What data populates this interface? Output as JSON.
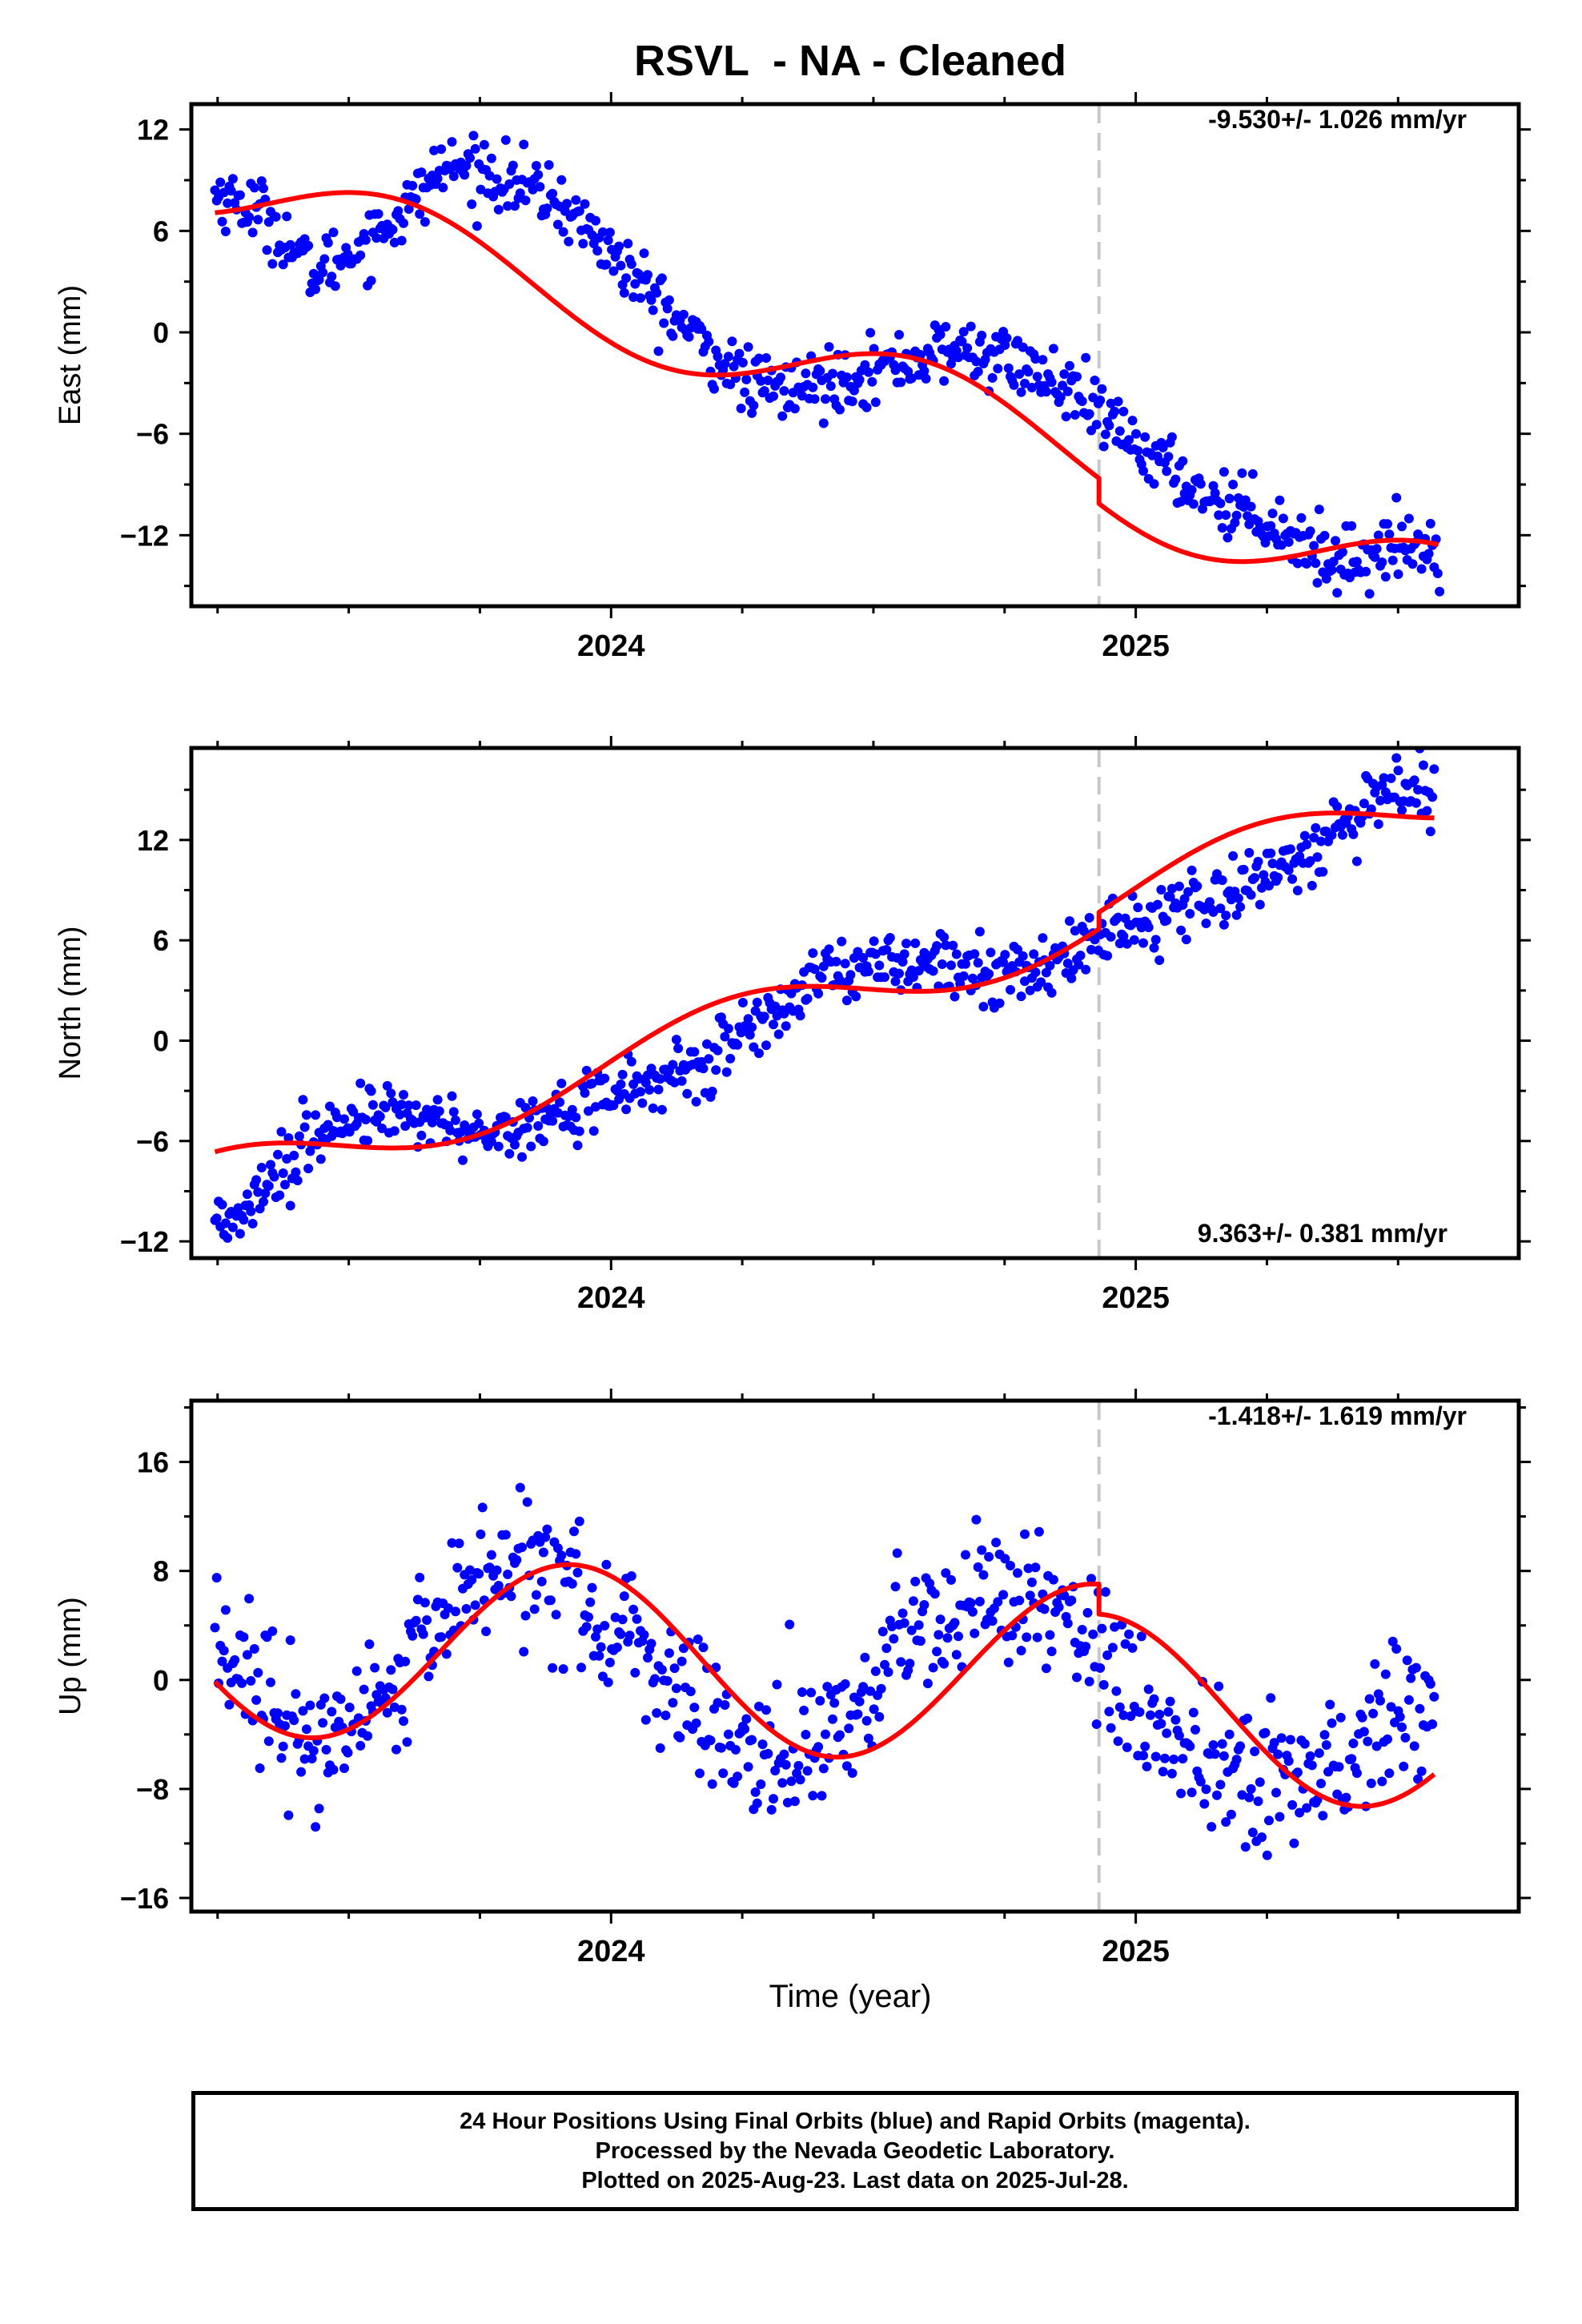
{
  "title": "RSVL  - NA - Cleaned",
  "x_axis_label": "Time (year)",
  "colors": {
    "points": "#0000ff",
    "model": "#ff0000",
    "break_line": "#c8c8c8",
    "frame": "#000000"
  },
  "footer": {
    "line1": "24 Hour Positions Using Final Orbits (blue) and Rapid Orbits (magenta).",
    "line2": "Processed by the Nevada Geodetic Laboratory.",
    "line3": "Plotted on 2025-Aug-23. Last data on 2025-Jul-28."
  },
  "chart_data": [
    {
      "type": "scatter",
      "ylabel": "East (mm)",
      "rate_label": "-9.530+/- 1.026 mm/yr",
      "rate_position": "top-right",
      "xlim": [
        2023.2,
        2025.73
      ],
      "ylim": [
        -16.2,
        13.5
      ],
      "x_ticks": [
        2024,
        2025
      ],
      "x_tick_labels": [
        "2024",
        "2025"
      ],
      "y_ticks": [
        -12,
        -6,
        0,
        6,
        12
      ],
      "y_tick_labels": [
        "−12",
        "−6",
        "0",
        "6",
        "12"
      ],
      "equipment_change_x": 2024.93,
      "model": {
        "slope_mm_per_yr": -9.53,
        "ref_epoch": 2024.45,
        "offset_at_ref": -2.84,
        "annual_sin": 2.07,
        "annual_cos": 1.49,
        "semiannual_sin": 0.0,
        "semiannual_cos": 0.0,
        "step_at_break": -1.5
      },
      "series": [
        {
          "kind": "daily_positions",
          "x": [
            2023.25,
            2023.34,
            2023.43,
            2023.49,
            2023.56,
            2023.62,
            2023.68,
            2023.75,
            2023.83,
            2023.9,
            2023.98,
            2024.05,
            2024.12,
            2024.2,
            2024.27,
            2024.34,
            2024.4,
            2024.46,
            2024.52,
            2024.58,
            2024.65,
            2024.72,
            2024.79,
            2024.87,
            2024.93,
            2025.0,
            2025.08,
            2025.15,
            2025.22,
            2025.3,
            2025.37,
            2025.44,
            2025.51,
            2025.57
          ],
          "y": [
            8.2,
            7.0,
            3.5,
            4.5,
            6.0,
            7.6,
            9.8,
            9.6,
            8.7,
            7.7,
            5.4,
            3.0,
            0.9,
            -1.5,
            -3.2,
            -3.4,
            -3.0,
            -2.4,
            -2.1,
            -1.6,
            -1.0,
            -1.3,
            -2.1,
            -3.4,
            -5.0,
            -6.6,
            -8.5,
            -9.9,
            -10.5,
            -12.0,
            -13.5,
            -13.2,
            -12.5,
            -12.6
          ]
        }
      ]
    },
    {
      "type": "scatter",
      "ylabel": "North (mm)",
      "rate_label": "9.363+/- 0.381 mm/yr",
      "rate_position": "bottom-right",
      "xlim": [
        2023.2,
        2025.73
      ],
      "ylim": [
        -13.0,
        17.5
      ],
      "x_ticks": [
        2024,
        2025
      ],
      "x_tick_labels": [
        "2024",
        "2025"
      ],
      "y_ticks": [
        -12,
        -6,
        0,
        6,
        12
      ],
      "y_tick_labels": [
        "−12",
        "−6",
        "0",
        "6",
        "12"
      ],
      "equipment_change_x": 2024.93,
      "model": {
        "slope_mm_per_yr": 9.363,
        "ref_epoch": 2024.45,
        "offset_at_ref": 2.79,
        "annual_sin": -1.81,
        "annual_cos": 0.38,
        "semiannual_sin": 0.0,
        "semiannual_cos": 0.0,
        "step_at_break": 1.0
      },
      "series": [
        {
          "kind": "daily_positions",
          "x": [
            2023.25,
            2023.31,
            2023.37,
            2023.43,
            2023.5,
            2023.56,
            2023.62,
            2023.68,
            2023.75,
            2023.81,
            2023.87,
            2023.93,
            2024.0,
            2024.06,
            2024.12,
            2024.19,
            2024.25,
            2024.31,
            2024.37,
            2024.44,
            2024.5,
            2024.56,
            2024.62,
            2024.68,
            2024.75,
            2024.81,
            2024.87,
            2024.94,
            2025.0,
            2025.06,
            2025.12,
            2025.19,
            2025.25,
            2025.31,
            2025.37,
            2025.44,
            2025.5,
            2025.56
          ],
          "y": [
            -11.0,
            -9.5,
            -7.6,
            -6.0,
            -4.9,
            -4.3,
            -4.4,
            -4.8,
            -5.2,
            -5.3,
            -4.8,
            -4.0,
            -3.2,
            -2.7,
            -2.1,
            -1.4,
            0.3,
            1.8,
            3.4,
            4.4,
            5.0,
            4.8,
            4.6,
            4.1,
            3.9,
            4.4,
            5.0,
            6.4,
            7.1,
            7.9,
            8.6,
            9.1,
            10.1,
            11.0,
            12.3,
            13.4,
            14.8,
            15.2
          ]
        }
      ]
    },
    {
      "type": "scatter",
      "ylabel": "Up (mm)",
      "rate_label": "-1.418+/- 1.619 mm/yr",
      "rate_position": "top-right",
      "xlim": [
        2023.2,
        2025.73
      ],
      "ylim": [
        -17.0,
        20.5
      ],
      "x_ticks": [
        2024,
        2025
      ],
      "x_tick_labels": [
        "2024",
        "2025"
      ],
      "y_ticks": [
        -16,
        -8,
        0,
        8,
        16
      ],
      "y_tick_labels": [
        "−16",
        "−8",
        "0",
        "8",
        "16"
      ],
      "equipment_change_x": 2024.93,
      "model": {
        "slope_mm_per_yr": -1.418,
        "ref_epoch": 2024.45,
        "offset_at_ref": 1.01,
        "annual_sin": 1.05,
        "annual_cos": -6.62,
        "semiannual_sin": 0.0,
        "semiannual_cos": 0.0,
        "step_at_break": -2.2
      },
      "series": [
        {
          "kind": "daily_positions",
          "x": [
            2023.25,
            2023.31,
            2023.37,
            2023.43,
            2023.49,
            2023.55,
            2023.62,
            2023.68,
            2023.74,
            2023.81,
            2023.87,
            2023.93,
            2023.99,
            2024.06,
            2024.12,
            2024.18,
            2024.24,
            2024.31,
            2024.37,
            2024.43,
            2024.49,
            2024.56,
            2024.62,
            2024.68,
            2024.74,
            2024.81,
            2024.87,
            2024.93,
            2024.99,
            2025.06,
            2025.12,
            2025.18,
            2025.24,
            2025.31,
            2025.37,
            2025.43,
            2025.49,
            2025.56
          ],
          "y": [
            3.0,
            -0.6,
            -3.8,
            -5.2,
            -3.9,
            -1.7,
            1.7,
            4.9,
            7.6,
            8.2,
            7.5,
            6.0,
            4.1,
            1.8,
            -0.6,
            -3.1,
            -5.4,
            -6.4,
            -5.8,
            -3.7,
            -1.0,
            1.9,
            4.4,
            6.0,
            6.4,
            5.7,
            5.0,
            1.4,
            -0.8,
            -3.1,
            -4.9,
            -6.4,
            -7.1,
            -6.9,
            -5.9,
            -4.4,
            -3.0,
            -2.2
          ]
        }
      ]
    }
  ]
}
